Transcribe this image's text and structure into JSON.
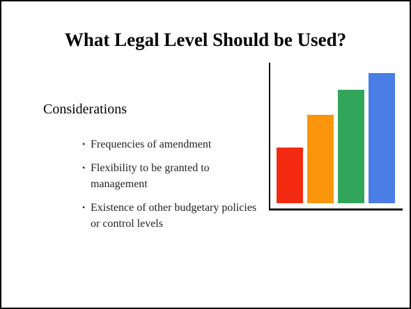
{
  "header": {
    "title": "What Legal Level Should be Used?"
  },
  "body": {
    "heading": "Considerations",
    "items": [
      "Frequencies of amendment",
      "Flexibility to be granted to management",
      "Existence of other budgetary policies or control levels"
    ]
  }
}
